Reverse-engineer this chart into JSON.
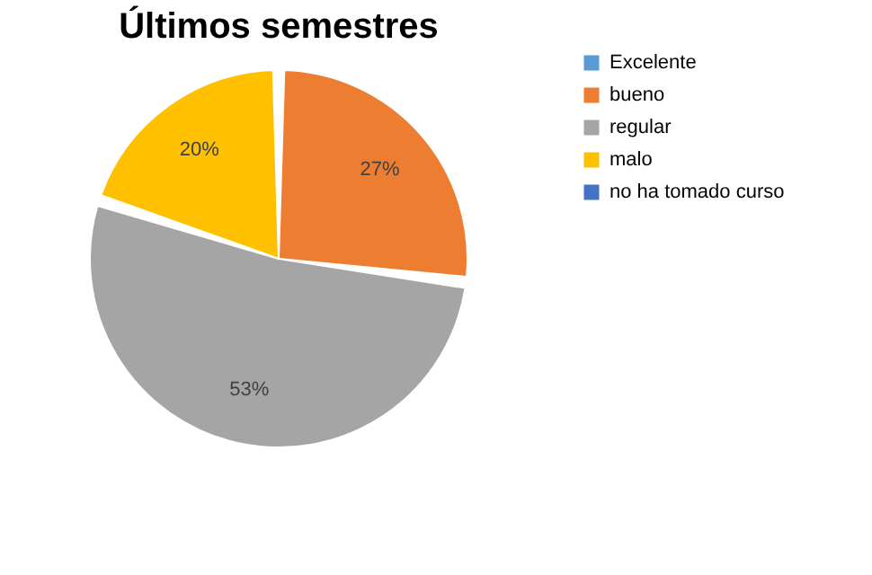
{
  "chart_data": {
    "type": "pie",
    "title": "Últimos semestres",
    "categories": [
      "Excelente",
      "bueno",
      "regular",
      "malo",
      "no ha tomado curso"
    ],
    "values": [
      0,
      27,
      53,
      20,
      0
    ],
    "colors": [
      "#5b9bd5",
      "#ed7d31",
      "#a5a5a5",
      "#ffc000",
      "#4472c4"
    ],
    "value_labels": [
      null,
      "27%",
      "53%",
      "20%",
      null
    ],
    "legend": "right"
  }
}
